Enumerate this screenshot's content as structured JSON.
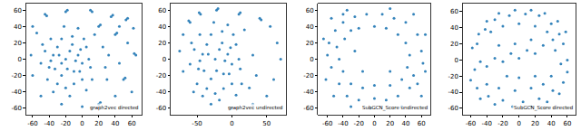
{
  "chart_data": [
    {
      "type": "scatter",
      "title": "graph2vec directed",
      "color": "#1f77b4",
      "grid": false,
      "xlim": [
        -68,
        72
      ],
      "ylim": [
        -68,
        68
      ],
      "xticks": [
        -60,
        -40,
        -20,
        0,
        20,
        40,
        60
      ],
      "yticks": [
        -60,
        -40,
        -20,
        0,
        20,
        40,
        60
      ],
      "x": [
        -40,
        -35,
        -30,
        -25,
        -20,
        -15,
        -10,
        -5,
        0,
        5,
        -30,
        -20,
        -10,
        0,
        10,
        -45,
        -38,
        -25,
        -12,
        2,
        8,
        -50,
        -42,
        -33,
        -18,
        -8,
        -28,
        -3,
        12,
        -15,
        -35,
        -5,
        -22,
        15,
        -48,
        5,
        -12,
        -38,
        -2,
        -25,
        -45,
        -43,
        -20,
        -18,
        10,
        12,
        35,
        37,
        55,
        53,
        62,
        20,
        22,
        40,
        42,
        55,
        65,
        63,
        45,
        50,
        52,
        60,
        40,
        20,
        22,
        0,
        -25,
        -50,
        -60,
        -62,
        -55,
        30,
        28,
        25,
        32,
        45,
        -60
      ],
      "values": [
        -10,
        5,
        15,
        -20,
        0,
        10,
        -15,
        5,
        -5,
        15,
        -30,
        -35,
        -30,
        -25,
        -10,
        10,
        25,
        25,
        28,
        25,
        0,
        -5,
        -25,
        -12,
        -12,
        -2,
        5,
        -15,
        -25,
        -45,
        -40,
        38,
        40,
        30,
        18,
        -38,
        18,
        -2,
        12,
        -5,
        55,
        53,
        58,
        60,
        60,
        58,
        52,
        54,
        50,
        48,
        38,
        40,
        42,
        30,
        32,
        20,
        5,
        7,
        -5,
        -25,
        -23,
        -40,
        -45,
        -55,
        -53,
        -58,
        -55,
        -45,
        -20,
        5,
        32,
        -25,
        -10,
        15,
        5,
        40,
        40
      ]
    },
    {
      "type": "scatter",
      "title": "graph2vec undirected",
      "color": "#1f77b4",
      "grid": false,
      "xlim": [
        -88,
        78
      ],
      "ylim": [
        -68,
        68
      ],
      "xticks": [
        -50,
        0,
        50
      ],
      "yticks": [
        -60,
        -40,
        -20,
        0,
        20,
        40,
        60
      ],
      "x": [
        -48,
        -42,
        -36,
        -30,
        -24,
        -18,
        -12,
        -6,
        0,
        6,
        -36,
        -24,
        -12,
        0,
        12,
        -54,
        -46,
        -30,
        -14,
        2,
        10,
        -60,
        -50,
        -40,
        -22,
        -10,
        -34,
        -4,
        14,
        -18,
        -42,
        -6,
        -26,
        18,
        -58,
        6,
        -14,
        -46,
        -2,
        30,
        35,
        25,
        -60,
        -45,
        -20,
        10,
        40,
        55,
        65,
        70,
        60,
        50,
        30,
        0,
        -30,
        -55,
        -70,
        -75,
        -70,
        -62,
        -47,
        -22,
        12,
        42
      ],
      "values": [
        -12,
        6,
        18,
        -24,
        0,
        12,
        -18,
        6,
        -6,
        18,
        -36,
        -42,
        -36,
        -30,
        -12,
        12,
        30,
        30,
        34,
        30,
        0,
        -6,
        -30,
        -14,
        -14,
        -2,
        6,
        -18,
        -30,
        -50,
        -45,
        42,
        45,
        36,
        20,
        -44,
        20,
        -2,
        14,
        5,
        -20,
        -35,
        45,
        55,
        62,
        55,
        50,
        40,
        20,
        0,
        -25,
        -45,
        -55,
        -60,
        -55,
        -40,
        -15,
        10,
        30,
        47,
        57,
        60,
        57,
        48
      ]
    },
    {
      "type": "scatter",
      "title": "SubGCN_Score undirected",
      "color": "#1f77b4",
      "grid": false,
      "xlim": [
        -72,
        72
      ],
      "ylim": [
        -68,
        68
      ],
      "xticks": [
        -60,
        -40,
        -20,
        0,
        20,
        40,
        60
      ],
      "yticks": [
        -60,
        -40,
        -20,
        0,
        20,
        40,
        60
      ],
      "x": [
        -60,
        -58,
        -55,
        -50,
        -45,
        -40,
        -35,
        -25,
        -20,
        -10,
        0,
        10,
        15,
        25,
        30,
        40,
        45,
        55,
        50,
        60,
        62,
        -48,
        -45,
        -40,
        -38,
        -30,
        -30,
        -20,
        -15,
        0,
        0,
        15,
        20,
        30,
        35,
        40,
        42,
        45,
        -52,
        -62,
        -65,
        -55,
        -35,
        20,
        50,
        65,
        60,
        35,
        -5,
        -30,
        -15,
        -25,
        20,
        -40,
        55,
        65
      ],
      "values": [
        5,
        20,
        -10,
        35,
        -30,
        45,
        -45,
        52,
        -50,
        55,
        -48,
        55,
        -50,
        50,
        -45,
        45,
        -35,
        30,
        -20,
        10,
        -5,
        15,
        0,
        -15,
        25,
        35,
        -30,
        38,
        -35,
        40,
        -32,
        38,
        -32,
        30,
        -25,
        20,
        -10,
        5,
        -45,
        -25,
        25,
        50,
        60,
        62,
        55,
        30,
        -45,
        -58,
        -60,
        -58,
        -15,
        10,
        -15,
        55,
        -30,
        -15
      ]
    },
    {
      "type": "scatter",
      "title": "SubGCN_Score directed",
      "color": "#1f77b4",
      "grid": false,
      "xlim": [
        -70,
        70
      ],
      "ylim": [
        -68,
        70
      ],
      "xticks": [
        -60,
        -40,
        -20,
        0,
        20,
        40,
        60
      ],
      "yticks": [
        -60,
        -40,
        -20,
        0,
        20,
        40,
        60
      ],
      "x": [
        -58,
        -52,
        -50,
        -42,
        -40,
        -30,
        -25,
        -12,
        -5,
        8,
        15,
        25,
        32,
        40,
        48,
        50,
        58,
        55,
        -35,
        -20,
        0,
        20,
        35,
        42,
        45,
        30,
        20,
        10,
        0,
        -10,
        -20,
        -30,
        -40,
        -48,
        -55,
        15,
        -5,
        -25,
        -60,
        -52,
        -48,
        -38,
        -30,
        -20,
        -8,
        5,
        15,
        25,
        35,
        42,
        50,
        55,
        60,
        52,
        60,
        -40,
        -25,
        -5,
        15,
        30,
        40,
        20,
        0,
        -15
      ],
      "values": [
        15,
        20,
        32,
        38,
        48,
        50,
        58,
        55,
        62,
        57,
        62,
        55,
        58,
        45,
        48,
        32,
        35,
        20,
        35,
        42,
        45,
        42,
        35,
        25,
        12,
        18,
        8,
        12,
        2,
        8,
        -2,
        2,
        -8,
        -2,
        -12,
        25,
        20,
        18,
        -25,
        -35,
        -48,
        -45,
        -55,
        -50,
        -58,
        -52,
        -58,
        -48,
        -52,
        -38,
        -42,
        -28,
        -15,
        -5,
        0,
        -30,
        -35,
        -38,
        -35,
        -30,
        -20,
        -20,
        -22,
        -20
      ]
    }
  ]
}
